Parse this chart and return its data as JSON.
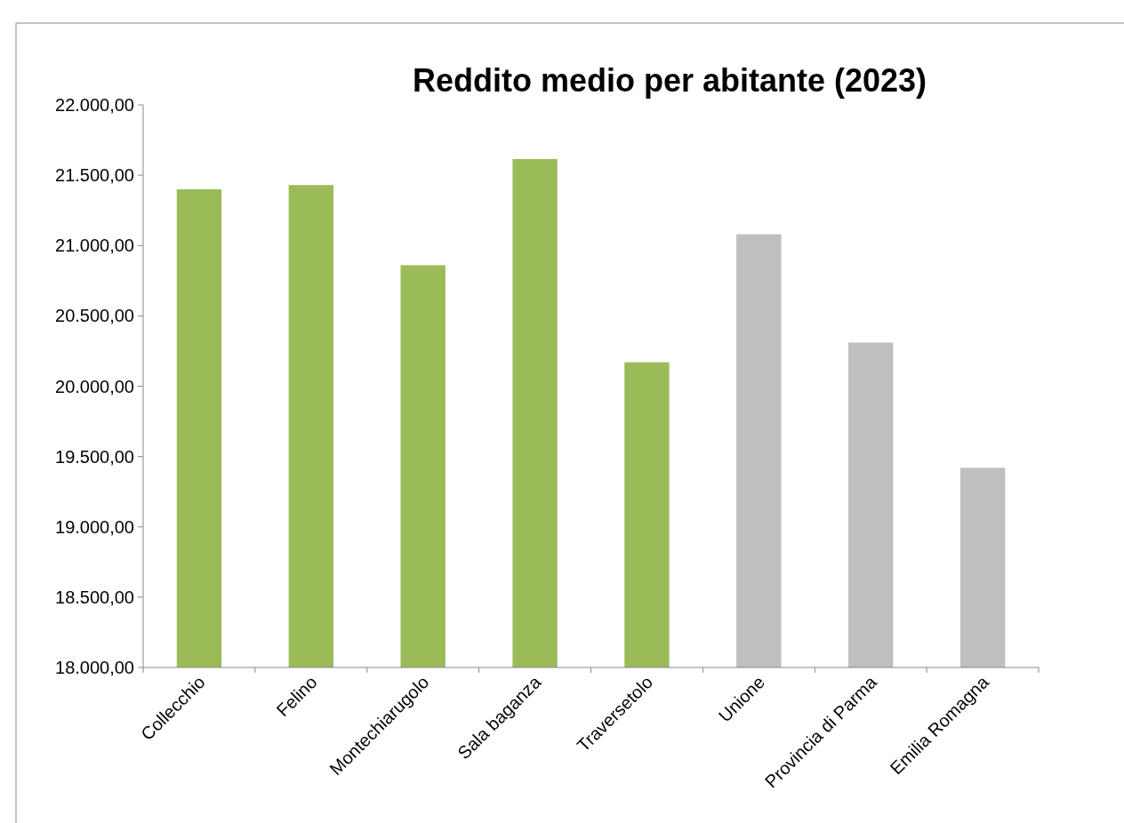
{
  "chart_data": {
    "type": "bar",
    "title": "Reddito medio per abitante (2023)",
    "categories": [
      "Collecchio",
      "Felino",
      "Montechiarugolo",
      "Sala baganza",
      "Traversetolo",
      "Unione",
      "Provincia di Parma",
      "Emilia Romagna"
    ],
    "values": [
      21400,
      21430,
      20860,
      21615,
      20170,
      21080,
      20310,
      19420
    ],
    "colors": [
      "#9bbb59",
      "#9bbb59",
      "#9bbb59",
      "#9bbb59",
      "#9bbb59",
      "#bfbfbf",
      "#bfbfbf",
      "#bfbfbf"
    ],
    "ylim": [
      18000,
      22000
    ],
    "yticks": [
      {
        "value": 18000,
        "label": "18.000,00"
      },
      {
        "value": 18500,
        "label": "18.500,00"
      },
      {
        "value": 19000,
        "label": "19.000,00"
      },
      {
        "value": 19500,
        "label": "19.500,00"
      },
      {
        "value": 20000,
        "label": "20.000,00"
      },
      {
        "value": 20500,
        "label": "20.500,00"
      },
      {
        "value": 21000,
        "label": "21.000,00"
      },
      {
        "value": 21500,
        "label": "21.500,00"
      },
      {
        "value": 22000,
        "label": "22.000,00"
      }
    ],
    "grid": false
  }
}
